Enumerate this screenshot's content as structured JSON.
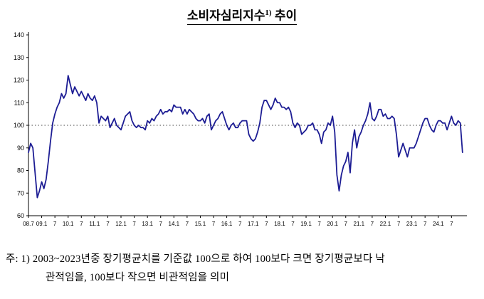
{
  "title": {
    "main": "소비자심리지수",
    "sup": "1)",
    "rest": " 추이"
  },
  "footnote": {
    "line1": "주: 1) 2003~2023년중 장기평균치를 기준값 100으로 하여 100보다 크면 장기평균보다 낙",
    "line2": "관적임을, 100보다 작으면 비관적임을 의미"
  },
  "chart_data": {
    "type": "line",
    "series_name": "소비자심리지수",
    "frequency": "monthly",
    "x_start": "2008-07",
    "x_end": "2024-12",
    "x_tick_labels": [
      "08.7",
      "09.1",
      "7",
      "10.1",
      "7",
      "11.1",
      "7",
      "12.1",
      "7",
      "13.1",
      "7",
      "14.1",
      "7",
      "15.1",
      "7",
      "16.1",
      "7",
      "17.1",
      "7",
      "18.1",
      "7",
      "19.1",
      "7",
      "20.1",
      "7",
      "21.1",
      "7",
      "22.1",
      "7",
      "23.1",
      "7",
      "24.1",
      "7"
    ],
    "x_tick_interval_months": 6,
    "values": [
      88,
      92,
      90,
      79,
      68,
      71,
      75,
      72,
      76,
      84,
      93,
      101,
      105,
      108,
      110,
      114,
      112,
      114,
      122,
      118,
      114,
      117,
      115,
      113,
      115,
      113,
      111,
      114,
      112,
      111,
      113,
      110,
      101,
      104,
      103,
      102,
      104,
      99,
      101,
      103,
      100,
      99,
      98,
      101,
      104,
      105,
      106,
      102,
      100,
      99,
      100,
      99,
      99,
      98,
      102,
      101,
      103,
      102,
      104,
      105,
      107,
      105,
      106,
      106,
      107,
      106,
      109,
      108,
      108,
      108,
      105,
      107,
      105,
      107,
      106,
      105,
      103,
      102,
      102,
      103,
      101,
      104,
      105,
      98,
      100,
      102,
      103,
      105,
      106,
      103,
      100,
      98,
      100,
      101,
      99,
      99,
      101,
      102,
      102,
      102,
      96,
      94,
      93,
      94,
      97,
      101,
      108,
      111,
      111,
      109,
      107,
      109,
      112,
      110,
      110,
      108,
      108,
      107,
      108,
      106,
      101,
      99,
      101,
      100,
      96,
      97,
      98,
      100,
      100,
      101,
      98,
      98,
      96,
      92,
      97,
      98,
      101,
      100,
      104,
      97,
      78,
      71,
      78,
      82,
      84,
      88,
      79,
      92,
      98,
      90,
      95,
      97,
      100,
      102,
      105,
      110,
      103,
      102,
      104,
      107,
      107,
      104,
      105,
      103,
      103,
      104,
      103,
      96,
      86,
      89,
      92,
      89,
      86,
      90,
      90,
      90,
      92,
      95,
      98,
      101,
      103,
      103,
      100,
      98,
      97,
      100,
      102,
      102,
      101,
      101,
      98,
      101,
      104,
      101,
      100,
      102,
      101,
      88
    ],
    "ylim": [
      60,
      140
    ],
    "y_ticks": [
      60,
      70,
      80,
      90,
      100,
      110,
      120,
      130,
      140
    ],
    "reference_line": 100,
    "line_color": "#1d1d94",
    "axis_color": "#000000",
    "grid": false,
    "legend": "none"
  }
}
